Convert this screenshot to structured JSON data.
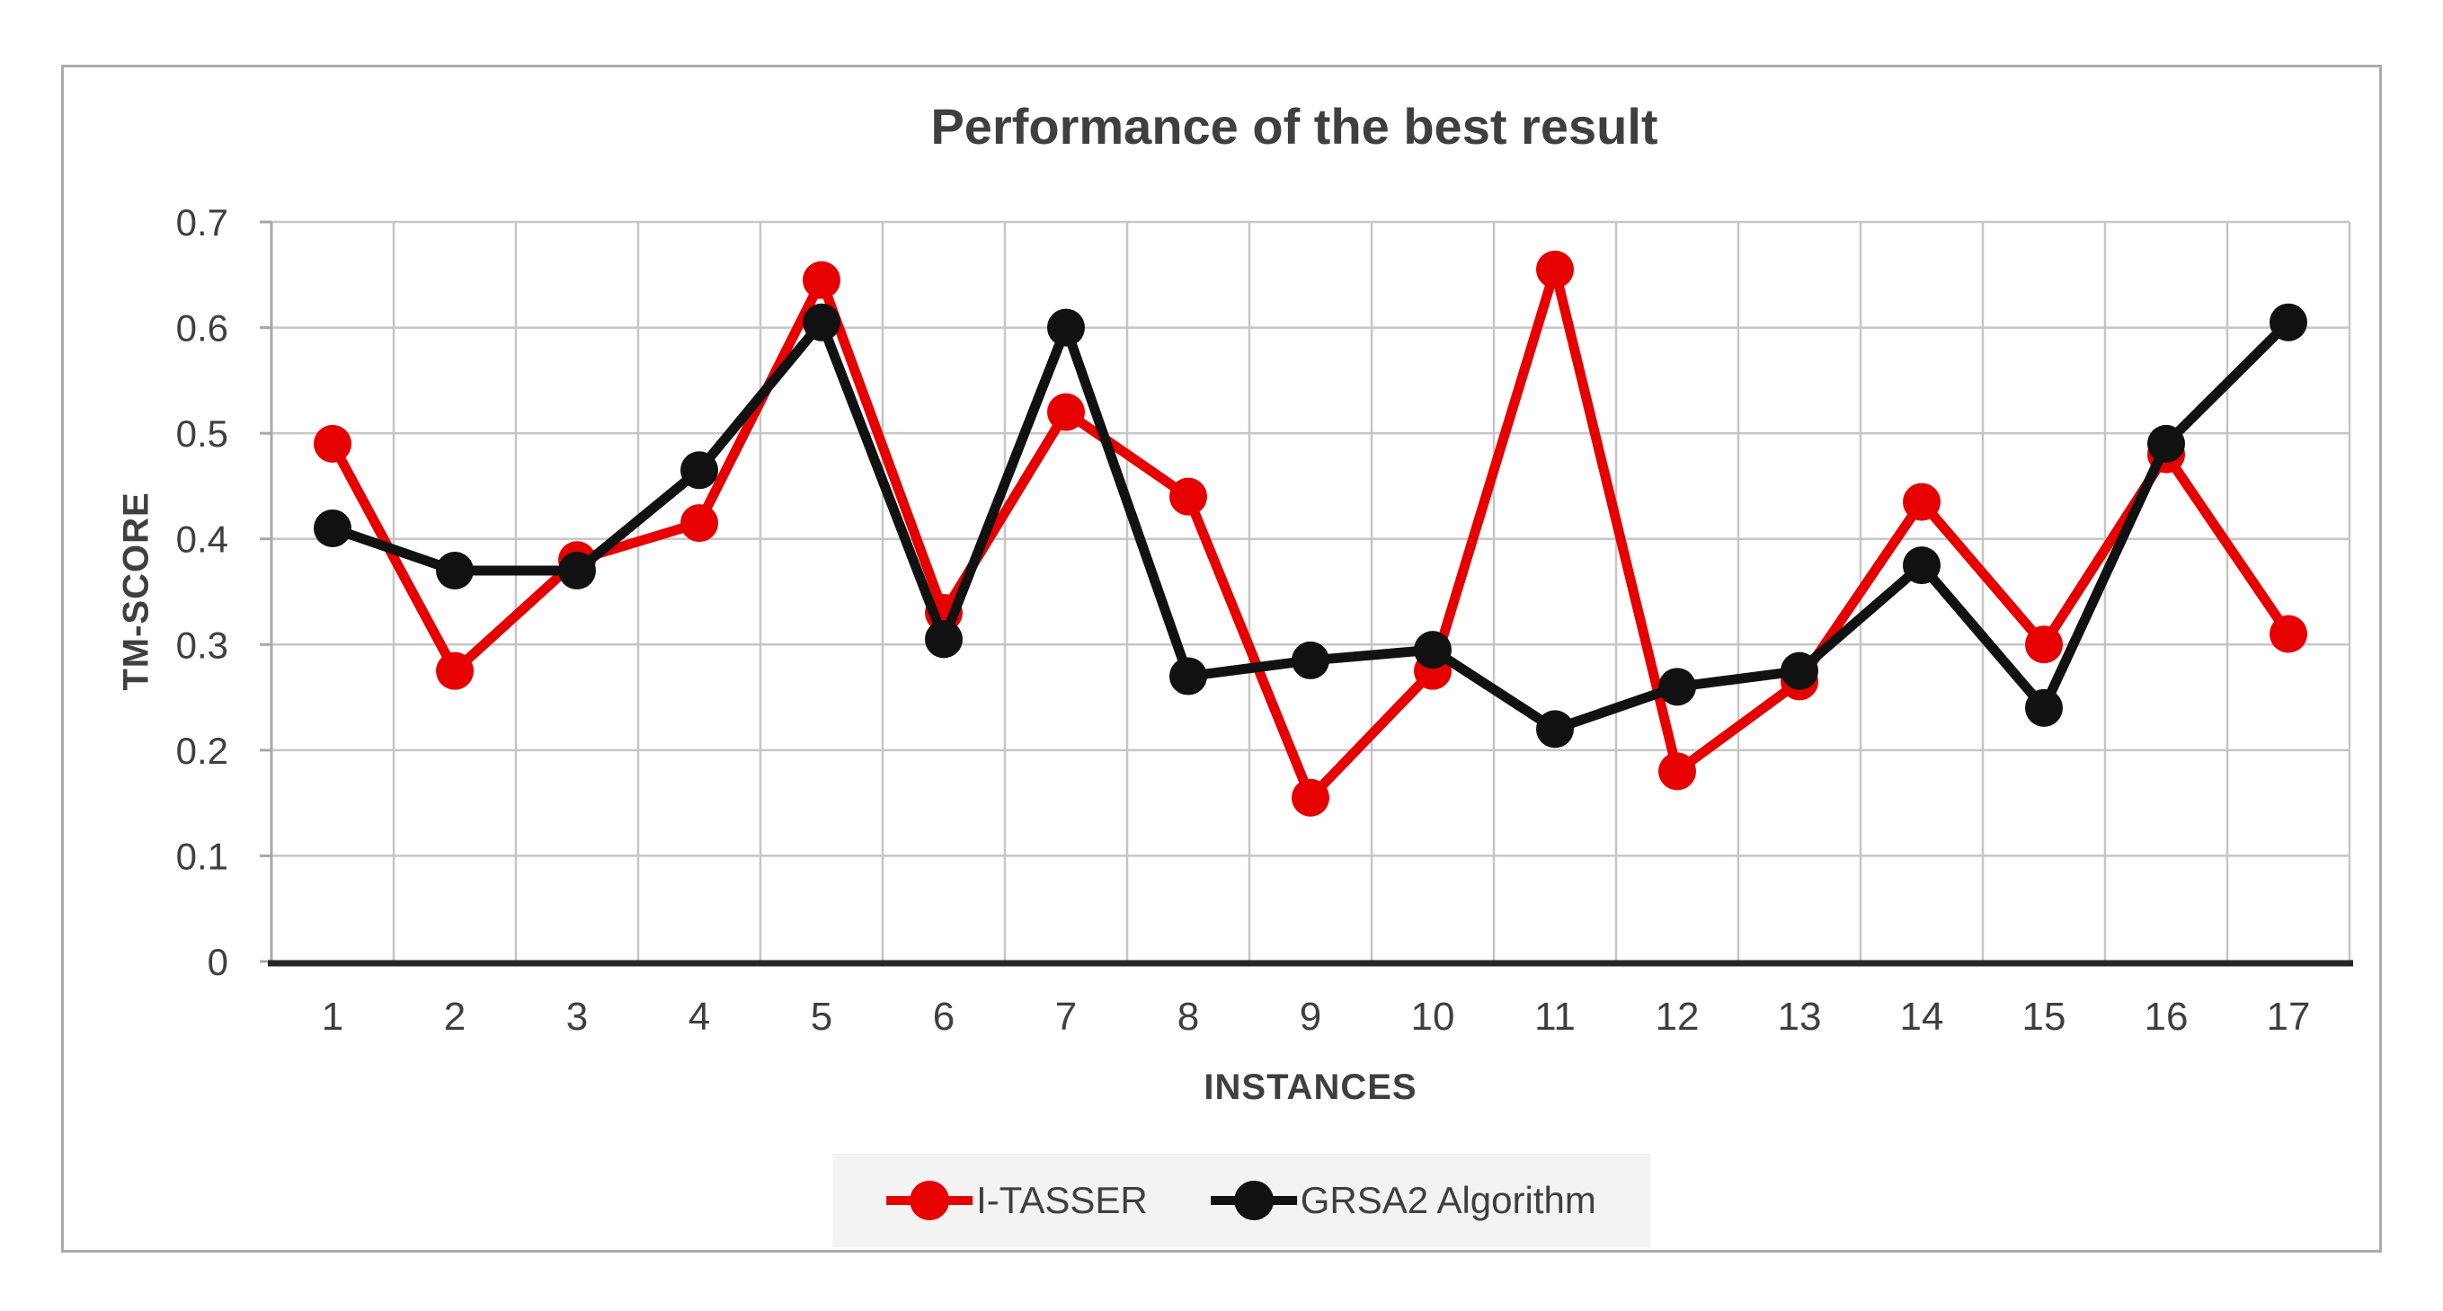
{
  "chart_data": {
    "type": "line",
    "title": "Performance of the best result",
    "xlabel": "INSTANCES",
    "ylabel": "TM-SCORE",
    "categories": [
      "1",
      "2",
      "3",
      "4",
      "5",
      "6",
      "7",
      "8",
      "9",
      "10",
      "11",
      "12",
      "13",
      "14",
      "15",
      "16",
      "17"
    ],
    "series": [
      {
        "name": "I-TASSER",
        "color": "#e60000",
        "values": [
          0.49,
          0.275,
          0.38,
          0.415,
          0.645,
          0.33,
          0.52,
          0.44,
          0.155,
          0.275,
          0.655,
          0.18,
          0.265,
          0.435,
          0.3,
          0.48,
          0.31
        ]
      },
      {
        "name": "GRSA2 Algorithm",
        "color": "#111111",
        "values": [
          0.41,
          0.37,
          0.37,
          0.465,
          0.605,
          0.305,
          0.6,
          0.27,
          0.285,
          0.295,
          0.22,
          0.26,
          0.275,
          0.375,
          0.24,
          0.49,
          0.605
        ]
      }
    ],
    "ylim": [
      0,
      0.7
    ],
    "y_ticks": [
      "0",
      "0.1",
      "0.2",
      "0.3",
      "0.4",
      "0.5",
      "0.6",
      "0.7"
    ],
    "grid": true,
    "legend_position": "bottom"
  },
  "colors": {
    "frame_border": "#ababab",
    "gridline": "#c6c6c6",
    "axis_line": "#a8a8a8",
    "bottom_axis": "#262626",
    "text": "#3f3f3f",
    "legend_background": "#f3f3f3"
  }
}
